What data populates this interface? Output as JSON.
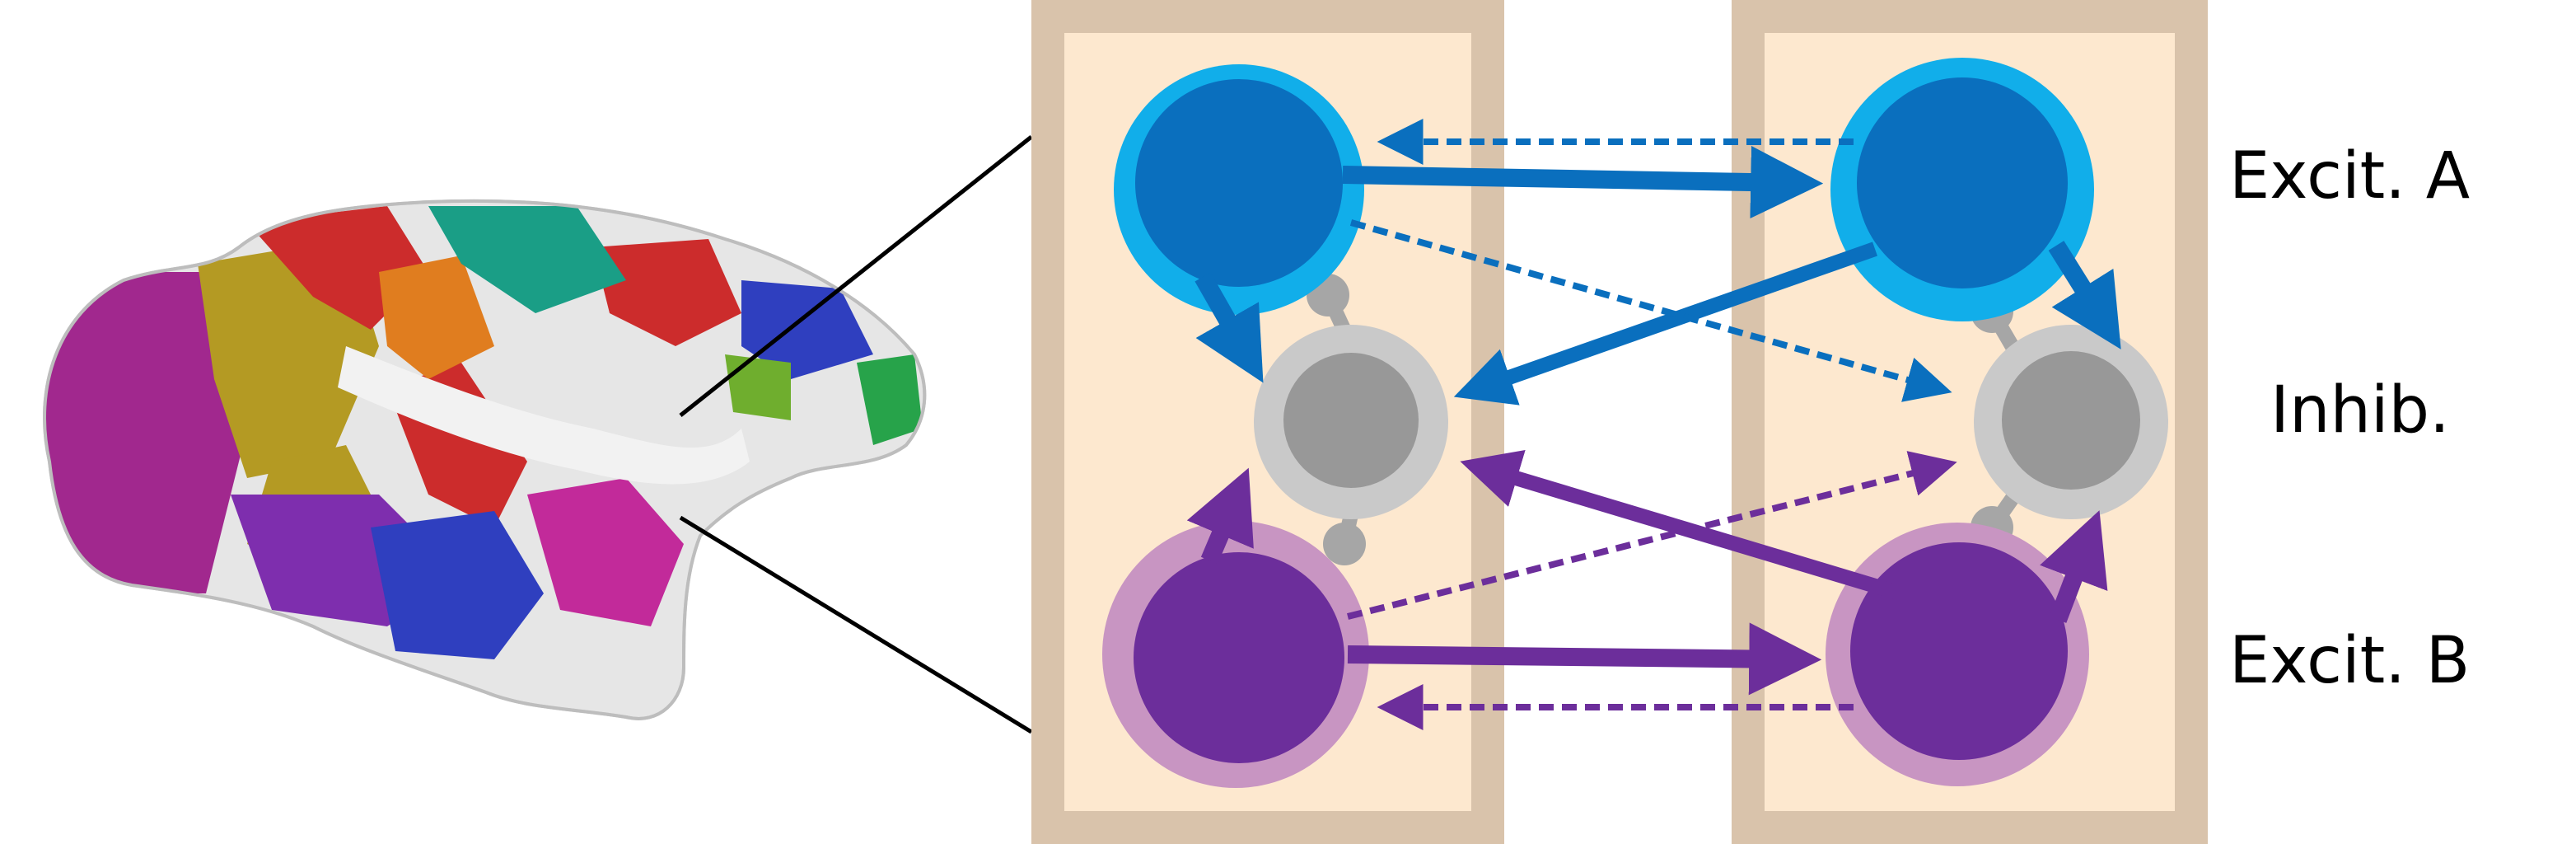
{
  "labels": {
    "excit_a": "Excit. A",
    "inhib": "Inhib.",
    "excit_b": "Excit. B"
  },
  "colors": {
    "background": "#ffffff",
    "area_frame": "#d9c3ab",
    "area_fill": "#fde8cf",
    "excit_a_core": "#0a6fbe",
    "excit_a_ring": "#11aeea",
    "excit_b_core": "#6c2e9b",
    "excit_b_ring": "#c895c2",
    "inhib_core": "#989898",
    "inhib_ring": "#c9c9c9",
    "zoom_lines": "#000000",
    "brain_surface": "#e6e6e6"
  },
  "connections": [
    {
      "from": "excit_a_left",
      "to": "excit_a_right",
      "style": "solid",
      "color": "excit_a"
    },
    {
      "from": "excit_a_right",
      "to": "excit_a_left",
      "style": "dashed",
      "color": "excit_a"
    },
    {
      "from": "excit_a_left",
      "to": "inhib_left",
      "style": "solid",
      "color": "excit_a"
    },
    {
      "from": "excit_a_right",
      "to": "inhib_left",
      "style": "solid",
      "color": "excit_a"
    },
    {
      "from": "excit_a_right",
      "to": "inhib_right",
      "style": "solid",
      "color": "excit_a"
    },
    {
      "from": "excit_a_left",
      "to": "inhib_right",
      "style": "dashed",
      "color": "excit_a"
    },
    {
      "from": "excit_b_left",
      "to": "excit_b_right",
      "style": "solid",
      "color": "excit_b"
    },
    {
      "from": "excit_b_right",
      "to": "excit_b_left",
      "style": "dashed",
      "color": "excit_b"
    },
    {
      "from": "excit_b_left",
      "to": "inhib_left",
      "style": "solid",
      "color": "excit_b"
    },
    {
      "from": "excit_b_right",
      "to": "inhib_left",
      "style": "solid",
      "color": "excit_b"
    },
    {
      "from": "excit_b_right",
      "to": "inhib_right",
      "style": "solid",
      "color": "excit_b"
    },
    {
      "from": "excit_b_left",
      "to": "inhib_right",
      "style": "dashed",
      "color": "excit_b"
    }
  ]
}
